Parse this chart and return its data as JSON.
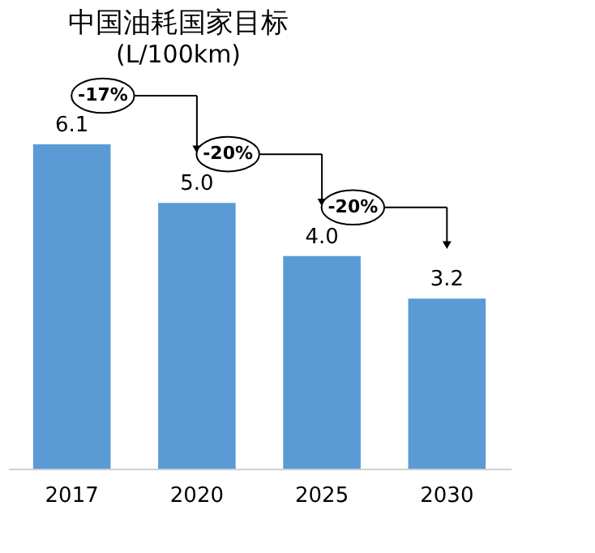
{
  "chart_data": {
    "type": "bar",
    "title": "中国油耗国家目标",
    "subtitle": "(L/100km)",
    "categories": [
      "2017",
      "2020",
      "2025",
      "2030"
    ],
    "values": [
      6.1,
      5.0,
      4.0,
      3.2
    ],
    "color": "#5b9bd5",
    "value_labels": [
      "6.1",
      "5.0",
      "4.0",
      "3.2"
    ],
    "annotations": [
      "-17%",
      "-20%",
      "-20%"
    ]
  }
}
